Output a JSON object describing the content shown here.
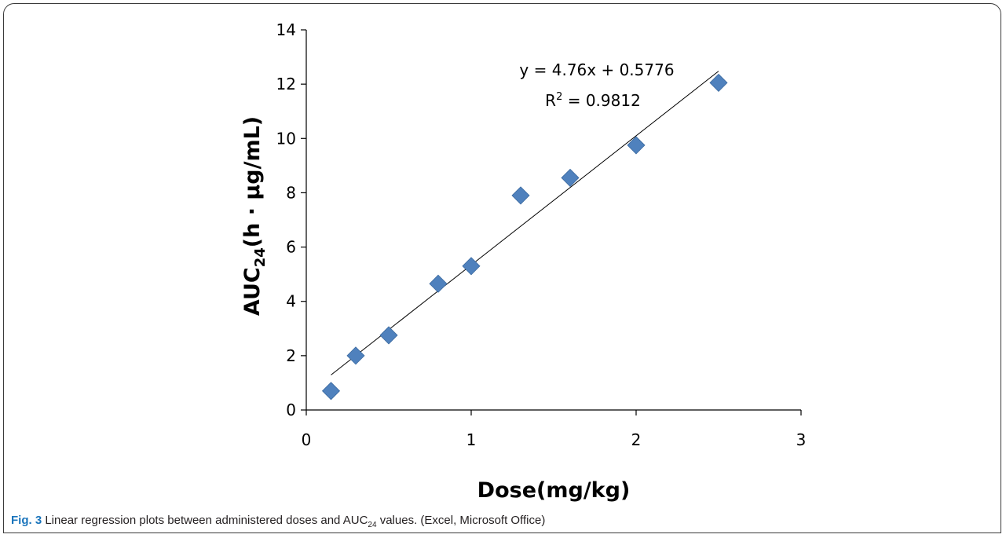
{
  "chart_data": {
    "type": "scatter",
    "xlabel": "Dose(mg/kg)",
    "ylabel_main": "AUC",
    "ylabel_sub": "24",
    "ylabel_rest": "(h · µg/mL)",
    "xlim": [
      0,
      3
    ],
    "ylim": [
      0,
      14
    ],
    "x_ticks": [
      "0",
      "1",
      "2",
      "3"
    ],
    "y_ticks": [
      "0",
      "2",
      "4",
      "6",
      "8",
      "10",
      "12",
      "14"
    ],
    "marker": "diamond",
    "marker_color": "#4f81bd",
    "points": [
      {
        "x": 0.15,
        "y": 0.7
      },
      {
        "x": 0.3,
        "y": 2.0
      },
      {
        "x": 0.5,
        "y": 2.75
      },
      {
        "x": 0.8,
        "y": 4.65
      },
      {
        "x": 1.0,
        "y": 5.3
      },
      {
        "x": 1.3,
        "y": 7.9
      },
      {
        "x": 1.6,
        "y": 8.55
      },
      {
        "x": 2.0,
        "y": 9.75
      },
      {
        "x": 2.5,
        "y": 12.05
      }
    ],
    "trendline": {
      "slope": 4.76,
      "intercept": 0.5776,
      "x_range": [
        0.15,
        2.5
      ],
      "equation": "y = 4.76x + 0.5776",
      "r2_label": "R",
      "r2_sup": "2",
      "r2_value": " = 0.9812"
    },
    "grid": false
  },
  "caption": {
    "figure_label": "Fig. 3",
    "text_before": " Linear regression plots between administered doses and AUC",
    "sub": "24",
    "text_after": " values. (Excel, Microsoft Office)"
  }
}
